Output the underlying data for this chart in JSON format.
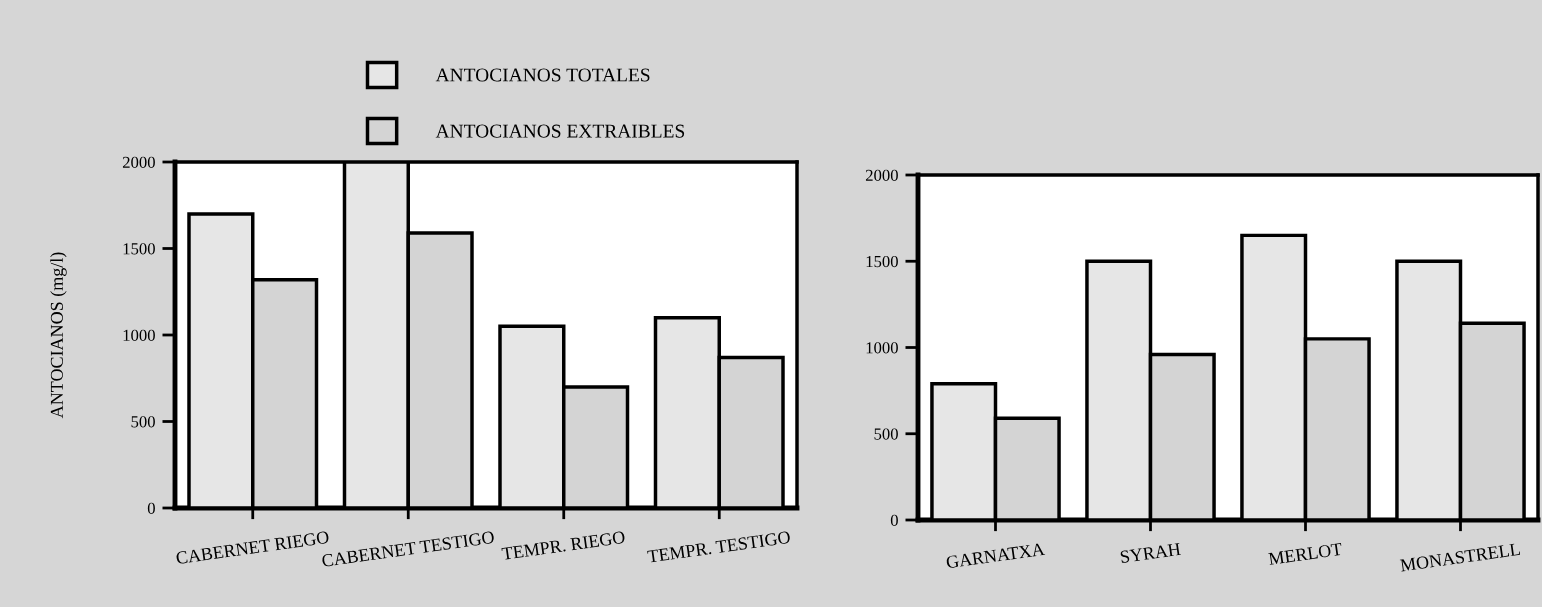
{
  "chart_data": [
    {
      "type": "bar",
      "ylabel": "ANTOCIANOS (mg/l)",
      "categories": [
        "CABERNET RIEGO",
        "CABERNET TESTIGO",
        "TEMPR. RIEGO",
        "TEMPR. TESTIGO"
      ],
      "ylim": [
        0,
        2000
      ],
      "yticks": [
        0,
        500,
        1000,
        1500,
        2000
      ],
      "legend": "top",
      "grid": false,
      "series": [
        {
          "name": "ANTOCIANOS TOTALES",
          "color": "#e6e6e6",
          "values": [
            1700,
            2000,
            1050,
            1100
          ]
        },
        {
          "name": "ANTOCIANOS EXTRAIBLES",
          "color": "#d4d4d4",
          "values": [
            1320,
            1590,
            700,
            870
          ]
        }
      ]
    },
    {
      "type": "bar",
      "categories": [
        "GARNATXA",
        "SYRAH",
        "MERLOT",
        "MONASTRELL"
      ],
      "ylim": [
        0,
        2000
      ],
      "yticks": [
        0,
        500,
        1000,
        1500,
        2000
      ],
      "grid": false,
      "series": [
        {
          "color": "#e6e6e6",
          "values": [
            790,
            1500,
            1650,
            1500
          ]
        },
        {
          "color": "#d4d4d4",
          "values": [
            590,
            960,
            1050,
            1140
          ]
        }
      ]
    }
  ]
}
